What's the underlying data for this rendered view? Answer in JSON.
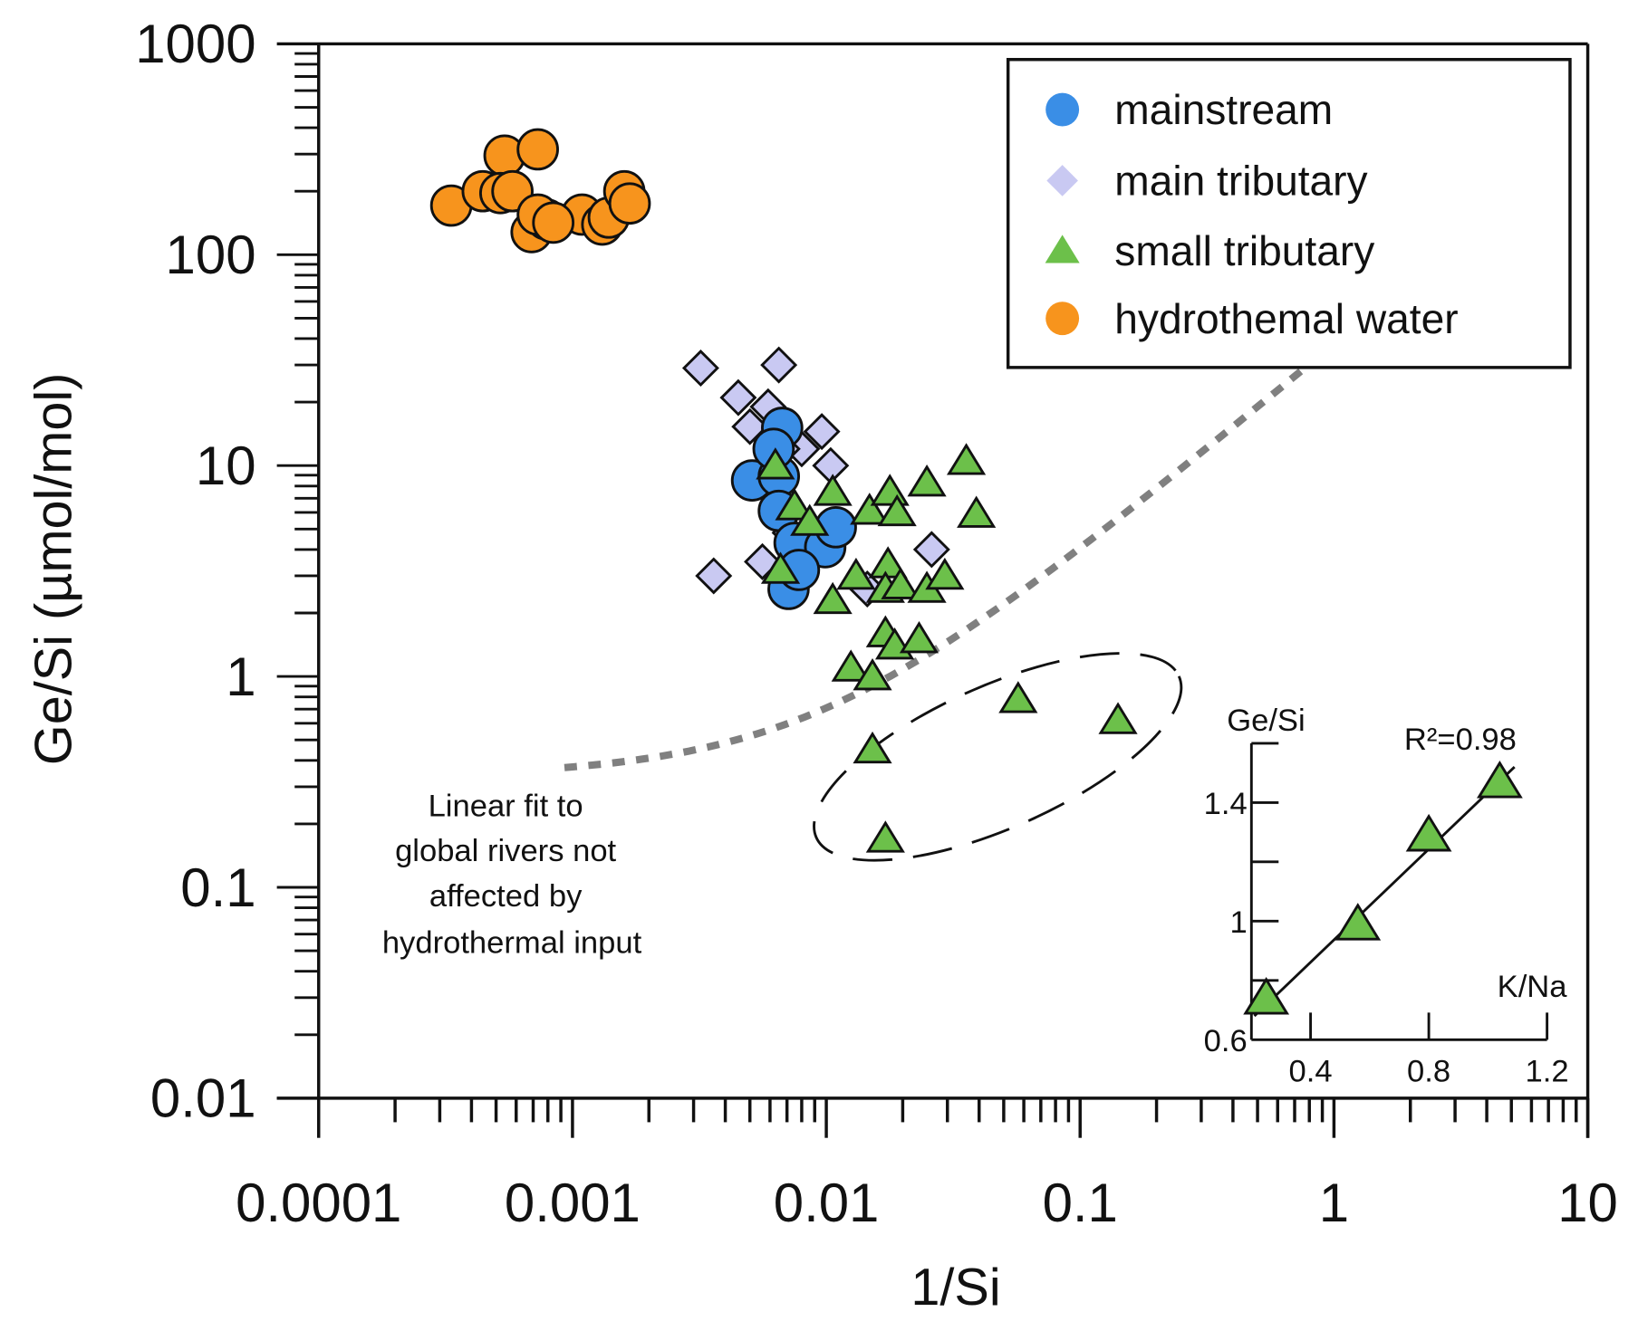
{
  "chart_data": {
    "type": "scatter",
    "xlabel": "1/Si",
    "ylabel": "Ge/Si (µmol/mol)",
    "xscale": "log",
    "yscale": "log",
    "xlim": [
      0.0001,
      10
    ],
    "ylim": [
      0.01,
      1000
    ],
    "x_ticks": [
      {
        "value": 0.0001,
        "label": "0.0001"
      },
      {
        "value": 0.001,
        "label": "0.001"
      },
      {
        "value": 0.01,
        "label": "0.01"
      },
      {
        "value": 0.1,
        "label": "0.1"
      },
      {
        "value": 1,
        "label": "1"
      },
      {
        "value": 10,
        "label": "10"
      }
    ],
    "y_ticks": [
      {
        "value": 0.01,
        "label": "0.01"
      },
      {
        "value": 0.1,
        "label": "0.1"
      },
      {
        "value": 1,
        "label": "1"
      },
      {
        "value": 10,
        "label": "10"
      },
      {
        "value": 100,
        "label": "100"
      },
      {
        "value": 1000,
        "label": "1000"
      }
    ],
    "legend_position": "top-right",
    "series": [
      {
        "name": "mainstream",
        "marker": "circle",
        "color": "#3a8ee6",
        "points": [
          [
            0.0051,
            8.5
          ],
          [
            0.0065,
            8.9
          ],
          [
            0.0067,
            15.1
          ],
          [
            0.0062,
            12
          ],
          [
            0.0065,
            6.1
          ],
          [
            0.0075,
            4.3
          ],
          [
            0.0099,
            4.1
          ],
          [
            0.0109,
            5.1
          ],
          [
            0.0071,
            2.6
          ],
          [
            0.0078,
            3.2
          ]
        ]
      },
      {
        "name": "main tributary",
        "marker": "diamond",
        "color": "#c9c9f2",
        "points": [
          [
            0.0032,
            29
          ],
          [
            0.0065,
            30
          ],
          [
            0.0045,
            21
          ],
          [
            0.0059,
            19
          ],
          [
            0.005,
            15.3
          ],
          [
            0.008,
            12
          ],
          [
            0.0096,
            14.5
          ],
          [
            0.0104,
            10
          ],
          [
            0.0067,
            12
          ],
          [
            0.0072,
            4.8
          ],
          [
            0.0056,
            3.5
          ],
          [
            0.0036,
            3.0
          ],
          [
            0.026,
            4.0
          ],
          [
            0.0145,
            2.6
          ]
        ]
      },
      {
        "name": "small tributary",
        "marker": "triangle",
        "color": "#6cc04a",
        "points": [
          [
            0.0063,
            10
          ],
          [
            0.0075,
            6.4
          ],
          [
            0.0086,
            5.4
          ],
          [
            0.0066,
            3.2
          ],
          [
            0.0106,
            7.5
          ],
          [
            0.0148,
            6.1
          ],
          [
            0.0178,
            7.5
          ],
          [
            0.019,
            6
          ],
          [
            0.0249,
            8.3
          ],
          [
            0.0356,
            10.5
          ],
          [
            0.039,
            5.9
          ],
          [
            0.0131,
            3.0
          ],
          [
            0.0175,
            3.4
          ],
          [
            0.0171,
            2.6
          ],
          [
            0.0196,
            2.7
          ],
          [
            0.0249,
            2.6
          ],
          [
            0.0293,
            3.0
          ],
          [
            0.0106,
            2.3
          ],
          [
            0.0171,
            1.6
          ],
          [
            0.0186,
            1.4
          ],
          [
            0.0232,
            1.5
          ],
          [
            0.0125,
            1.1
          ],
          [
            0.0152,
            1.0
          ],
          [
            0.0152,
            0.45
          ],
          [
            0.057,
            0.78
          ],
          [
            0.141,
            0.62
          ],
          [
            0.0171,
            0.17
          ]
        ]
      },
      {
        "name": "hydrothemal water",
        "marker": "circle",
        "color": "#f7941d",
        "points": [
          [
            0.000333,
            171
          ],
          [
            0.000443,
            200
          ],
          [
            0.00054,
            295
          ],
          [
            0.00073,
            316
          ],
          [
            0.00052,
            196
          ],
          [
            0.00058,
            200
          ],
          [
            0.00069,
            128
          ],
          [
            0.00079,
            147
          ],
          [
            0.00073,
            155
          ],
          [
            0.00109,
            155
          ],
          [
            0.00131,
            139
          ],
          [
            0.00139,
            150
          ],
          [
            0.0016,
            200
          ],
          [
            0.00168,
            175
          ],
          [
            0.00084,
            142
          ]
        ]
      }
    ],
    "fit_line": {
      "label_lines": [
        "Linear fit to",
        "global rivers not",
        "affected by",
        "hydrothermal input"
      ],
      "intercept": 0.335,
      "slope": 37.4,
      "x_range": [
        0.00093,
        0.98
      ],
      "color": "#808080"
    },
    "inset": {
      "type": "scatter",
      "xlabel": "K/Na",
      "ylabel": "Ge/Si",
      "xlim": [
        0.2,
        1.2
      ],
      "ylim": [
        0.6,
        1.6
      ],
      "x_ticks": [
        {
          "value": 0.4,
          "label": "0.4"
        },
        {
          "value": 0.8,
          "label": "0.8"
        },
        {
          "value": 1.2,
          "label": "1.2"
        }
      ],
      "y_ticks": [
        {
          "value": 0.6,
          "label": "0.6"
        },
        {
          "value": 1.0,
          "label": "1"
        },
        {
          "value": 1.4,
          "label": "1.4"
        }
      ],
      "annotation": "R²=0.98",
      "points": [
        [
          0.25,
          0.74
        ],
        [
          0.56,
          0.99
        ],
        [
          0.8,
          1.29
        ],
        [
          1.04,
          1.47
        ]
      ],
      "fit": [
        [
          0.21,
          0.68
        ],
        [
          1.09,
          1.52
        ]
      ]
    }
  }
}
